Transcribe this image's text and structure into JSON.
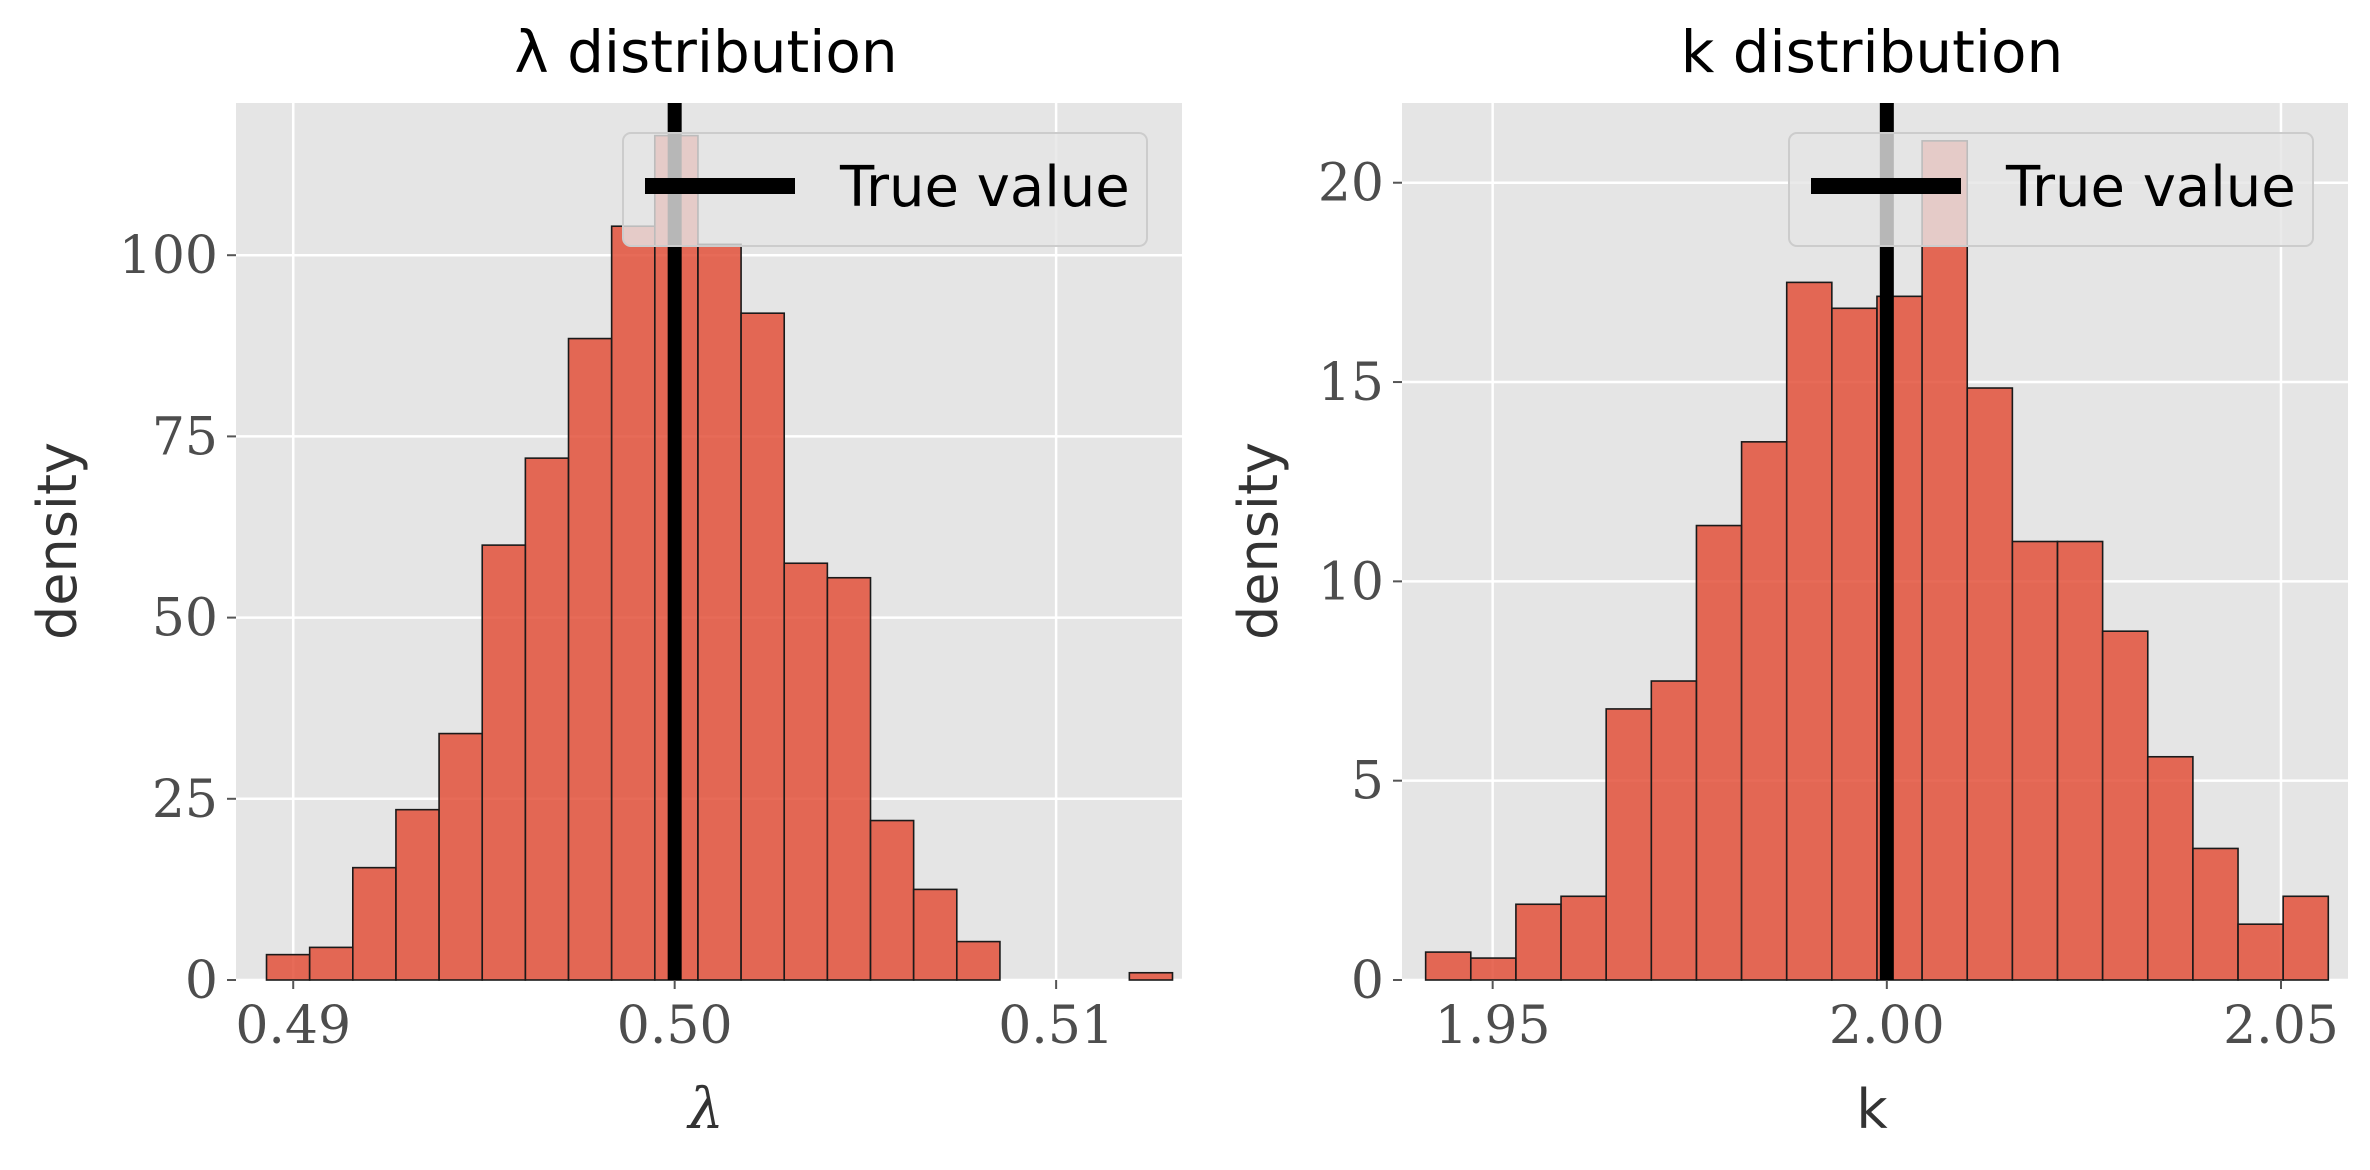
{
  "chart_data": [
    {
      "type": "bar",
      "title": "λ distribution",
      "xlabel": "λ",
      "ylabel": "density",
      "xlim": [
        0.4885,
        0.5133
      ],
      "ylim": [
        0,
        121
      ],
      "xticks": [
        0.49,
        0.5,
        0.51
      ],
      "xtick_labels": [
        "0.49",
        "0.50",
        "0.51"
      ],
      "yticks": [
        0,
        25,
        50,
        75,
        100
      ],
      "ytick_labels": [
        "0",
        "25",
        "50",
        "75",
        "100"
      ],
      "grid": true,
      "bin_start": 0.4893,
      "bin_width": 0.001131,
      "values": [
        3.5,
        4.5,
        15.5,
        23.5,
        34,
        60,
        72,
        88.5,
        104,
        116.5,
        101.5,
        92,
        57.5,
        55.5,
        22,
        12.5,
        5.3,
        0,
        0,
        0,
        1
      ],
      "true_value": 0.5,
      "bar_color": "#E24A33",
      "legend": {
        "entries": [
          "True value"
        ],
        "position": "upper-right"
      }
    },
    {
      "type": "bar",
      "title": "k distribution",
      "xlabel": "k",
      "ylabel": "density",
      "xlim": [
        1.9385,
        2.0585
      ],
      "ylim": [
        0,
        22
      ],
      "xticks": [
        1.95,
        2.0,
        2.05
      ],
      "xtick_labels": [
        "1.95",
        "2.00",
        "2.05"
      ],
      "yticks": [
        0,
        5,
        10,
        15,
        20
      ],
      "ytick_labels": [
        "0",
        "5",
        "10",
        "15",
        "20"
      ],
      "grid": true,
      "bin_start": 1.9415,
      "bin_width": 0.005725,
      "values": [
        0.7,
        0.55,
        1.9,
        2.1,
        6.8,
        7.5,
        11.4,
        13.5,
        17.5,
        16.85,
        17.15,
        21.05,
        14.85,
        11.0,
        11.0,
        8.75,
        5.6,
        3.3,
        1.4,
        2.1
      ],
      "true_value": 2.0,
      "bar_color": "#E24A33",
      "legend": {
        "entries": [
          "True value"
        ],
        "position": "upper-right"
      }
    }
  ]
}
